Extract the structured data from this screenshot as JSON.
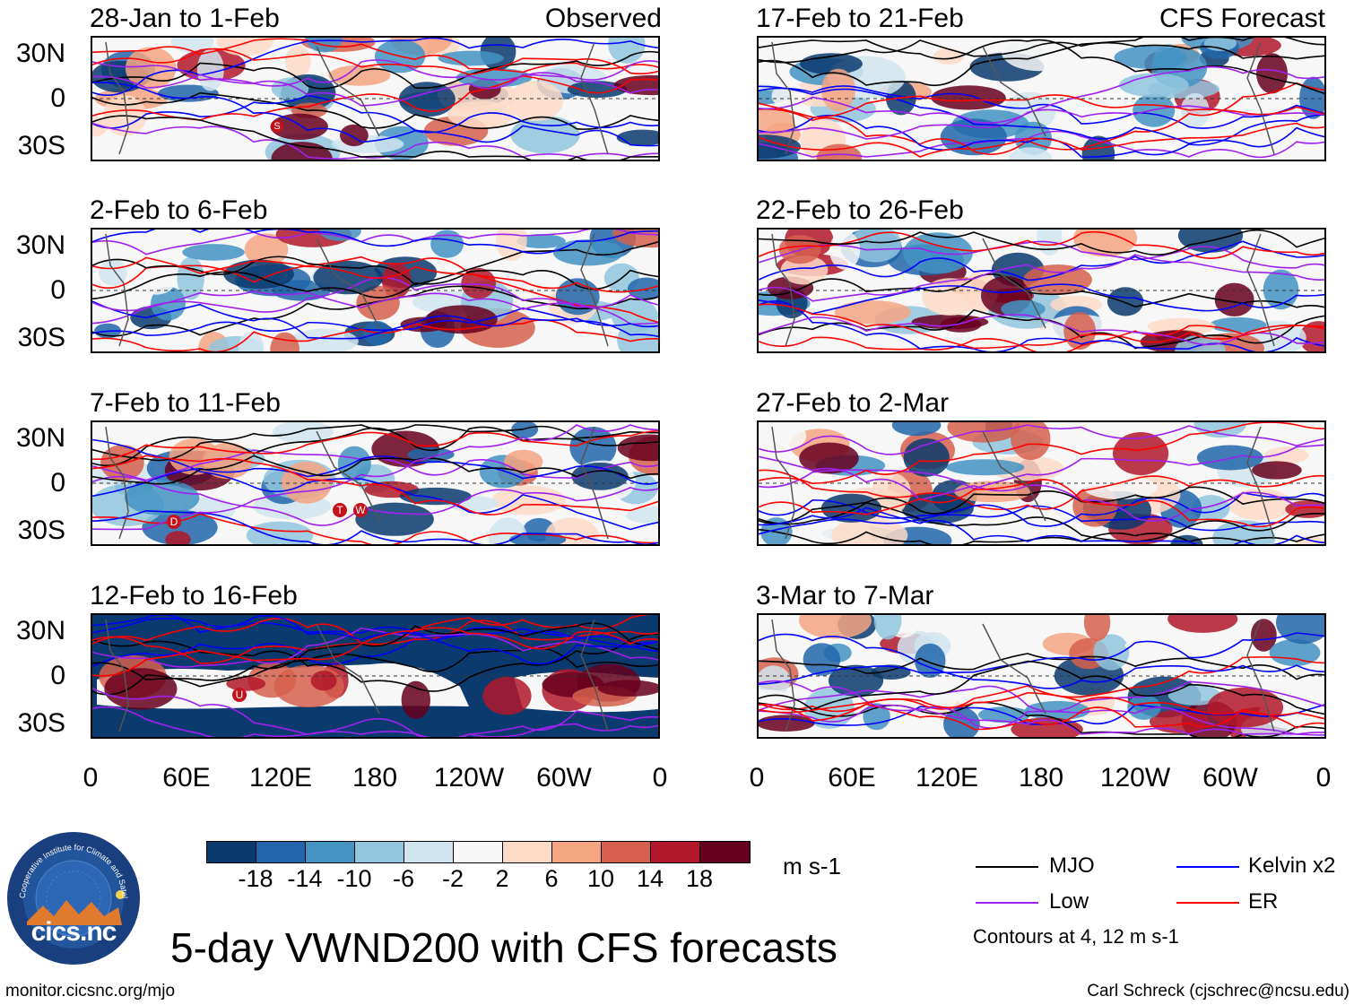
{
  "header": {
    "left_label": "Observed",
    "right_label": "CFS Forecast"
  },
  "panels_left": [
    {
      "title": "28-Jan to 1-Feb"
    },
    {
      "title": "2-Feb to 6-Feb"
    },
    {
      "title": "7-Feb to 11-Feb"
    },
    {
      "title": "12-Feb to 16-Feb"
    }
  ],
  "panels_right": [
    {
      "title": "17-Feb to 21-Feb"
    },
    {
      "title": "22-Feb to 26-Feb"
    },
    {
      "title": "27-Feb to 2-Mar"
    },
    {
      "title": "3-Mar to 7-Mar"
    }
  ],
  "axes": {
    "lat_labels": [
      "30N",
      "0",
      "30S"
    ],
    "lon_labels": [
      "0",
      "60E",
      "120E",
      "180",
      "120W",
      "60W",
      "0"
    ]
  },
  "markers": {
    "p1": "S",
    "p3": [
      "D",
      "T",
      "W"
    ],
    "p4": "U"
  },
  "colorbar": {
    "ticks": [
      "-18",
      "-14",
      "-10",
      "-6",
      "-2",
      "2",
      "6",
      "10",
      "14",
      "18"
    ],
    "units": "m s-1",
    "colors": [
      "#0b3a6e",
      "#2166ac",
      "#4393c3",
      "#92c5de",
      "#d1e5f0",
      "#f7f7f7",
      "#fddbc7",
      "#f4a582",
      "#d6604d",
      "#b2182b",
      "#67001f"
    ]
  },
  "legend": {
    "items": [
      {
        "label": "MJO",
        "color": "#000000"
      },
      {
        "label": "Kelvin x2",
        "color": "#0000ff"
      },
      {
        "label": "Low",
        "color": "#a020f0"
      },
      {
        "label": "ER",
        "color": "#ff0000"
      }
    ],
    "note": "Contours at 4, 12 m s-1"
  },
  "logo": {
    "text": "cics.nc",
    "ring_text": "Cooperative Institute for Climate and Satellites"
  },
  "footer": {
    "title": "5-day VWND200 with CFS forecasts",
    "url": "monitor.cicsnc.org/mjo",
    "credit": "Carl Schreck (cjschrec@ncsu.edu)"
  }
}
